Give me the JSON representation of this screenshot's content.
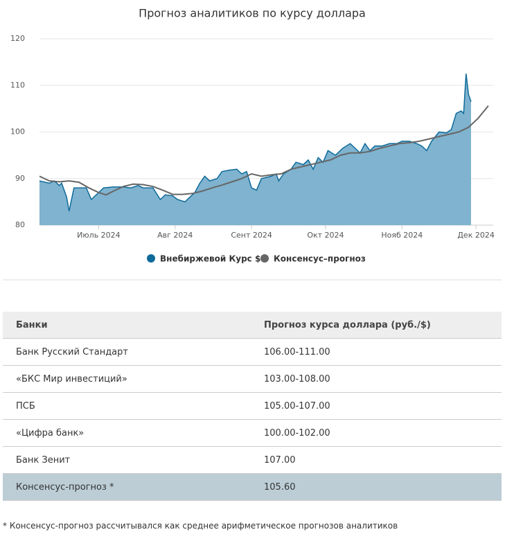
{
  "chart_data": {
    "type": "area-line",
    "title": "Прогноз аналитиков по курсу доллара",
    "xlim": [
      6,
      190
    ],
    "xticks": [
      {
        "value": 30,
        "label": "Июль 2024"
      },
      {
        "value": 61,
        "label": "Авг 2024"
      },
      {
        "value": 92,
        "label": "Сент 2024"
      },
      {
        "value": 122,
        "label": "Окт 2024"
      },
      {
        "value": 153,
        "label": "Нояб 2024"
      },
      {
        "value": 183,
        "label": "Дек 2024"
      }
    ],
    "ylim": [
      80,
      120
    ],
    "yticks": [
      80,
      90,
      100,
      110,
      120
    ],
    "grid": true,
    "series": [
      {
        "name": "Внебиржевой Курс $",
        "color": "#0e6a99",
        "fill": "#7fb3cf",
        "x": [
          6,
          10,
          12,
          14,
          15,
          17,
          18,
          20,
          23,
          25,
          27,
          29,
          32,
          36,
          40,
          43,
          46,
          48,
          52,
          55,
          57,
          60,
          62,
          65,
          67,
          69,
          71,
          73,
          75,
          78,
          80,
          83,
          86,
          88,
          90,
          92,
          94,
          96,
          100,
          102,
          103,
          105,
          108,
          110,
          113,
          115,
          117,
          119,
          121,
          123,
          126,
          129,
          132,
          134,
          136,
          138,
          140,
          142,
          145,
          148,
          151,
          153,
          156,
          159,
          161,
          163,
          165,
          168,
          171,
          173,
          175,
          177,
          178,
          179,
          180,
          181
        ],
        "values": [
          89.5,
          89,
          89.5,
          88.5,
          89,
          86,
          83,
          88,
          88,
          88,
          85.5,
          86.5,
          88,
          88.2,
          88.2,
          88,
          88.5,
          88,
          88,
          85.5,
          86.5,
          86.3,
          85.5,
          85,
          86,
          87,
          89,
          90.5,
          89.5,
          90,
          91.5,
          91.8,
          92,
          91,
          91.5,
          88,
          87.5,
          90,
          90.5,
          91,
          89.5,
          91,
          92,
          93.5,
          93,
          94,
          92,
          94.5,
          93.5,
          96,
          95,
          96.5,
          97.5,
          96.5,
          95.5,
          97.5,
          96,
          97,
          97,
          97.5,
          97.5,
          98,
          98,
          97.5,
          97,
          96,
          98,
          100,
          99.8,
          100.5,
          104,
          104.5,
          104,
          112.5,
          108,
          106.5
        ]
      },
      {
        "name": "Консенсус–прогноз",
        "color": "#666666",
        "x": [
          6,
          10,
          14,
          18,
          22,
          26,
          30,
          33,
          36,
          40,
          44,
          48,
          52,
          56,
          60,
          64,
          68,
          72,
          76,
          80,
          84,
          88,
          92,
          96,
          100,
          104,
          108,
          112,
          116,
          120,
          124,
          128,
          132,
          136,
          140,
          144,
          148,
          152,
          156,
          160,
          164,
          168,
          172,
          176,
          180,
          184,
          188
        ],
        "values": [
          90.5,
          89.5,
          89.3,
          89.5,
          89.2,
          88,
          87,
          86.5,
          87.3,
          88.3,
          88.8,
          88.7,
          88.3,
          87.5,
          86.6,
          86.6,
          86.8,
          87.3,
          88,
          88.6,
          89.3,
          90,
          91,
          90.5,
          90.8,
          91,
          92,
          92.5,
          93,
          93.5,
          94,
          95,
          95.5,
          95.5,
          95.8,
          96.5,
          97,
          97.5,
          97.7,
          98,
          98.5,
          99,
          99.5,
          100,
          101,
          103,
          105.6
        ]
      }
    ]
  },
  "table": {
    "header": [
      "Банки",
      "Прогноз курса доллара (руб./$)"
    ],
    "rows": [
      [
        "Банк Русский Стандарт",
        "106.00-111.00"
      ],
      [
        "«БКС Мир инвестиций»",
        "103.00-108.00"
      ],
      [
        "ПСБ",
        "105.00-107.00"
      ],
      [
        "«Цифра банк»",
        "100.00-102.00"
      ],
      [
        "Банк Зенит",
        "107.00"
      ],
      [
        "Консенсус-прогноз *",
        "105.60"
      ]
    ]
  },
  "footnote": "* Консенсус-прогноз рассчитывался как среднее арифметическое прогнозов аналитиков"
}
